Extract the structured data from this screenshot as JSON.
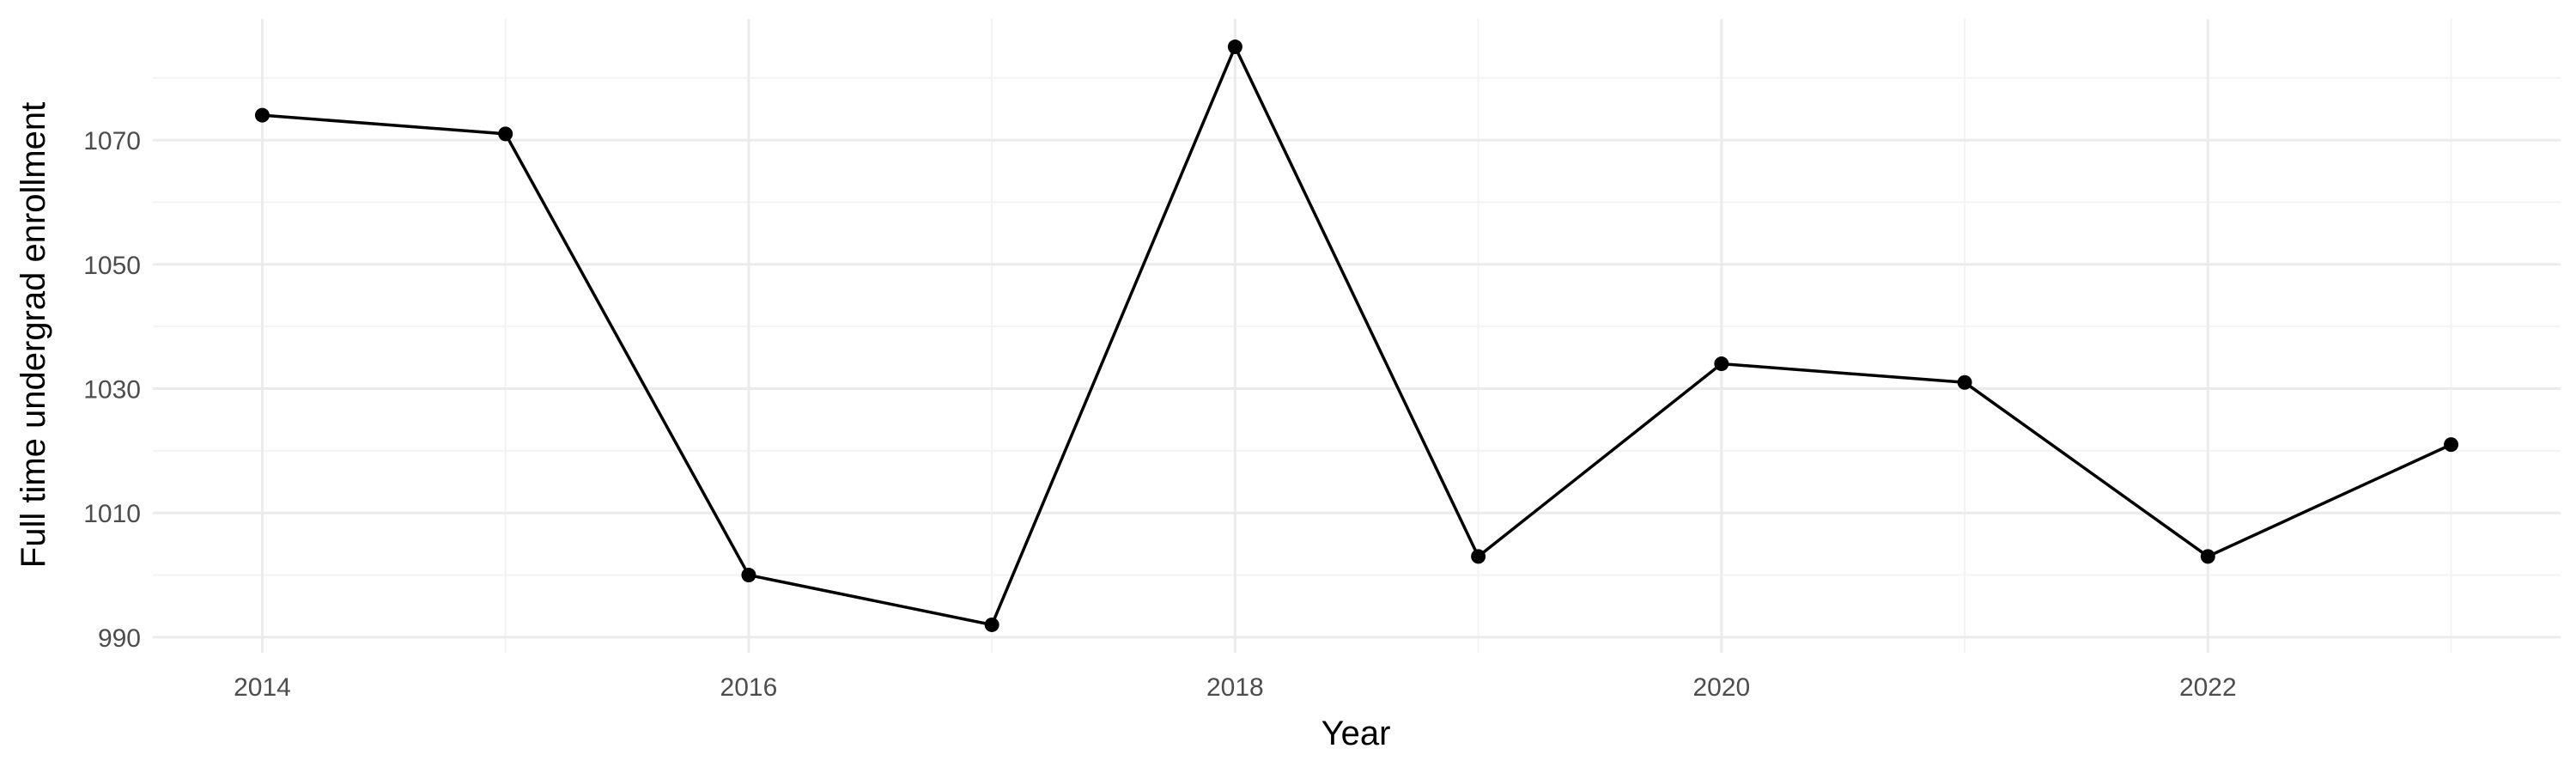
{
  "chart_data": {
    "type": "line",
    "xlabel": "Year",
    "ylabel": "Full time undergrad enrollment",
    "x": [
      2014,
      2015,
      2016,
      2017,
      2018,
      2019,
      2020,
      2021,
      2022,
      2023
    ],
    "series": [
      {
        "values": [
          1074,
          1071,
          1000,
          992,
          1085,
          1003,
          1034,
          1031,
          1003,
          1021
        ]
      }
    ],
    "xlim": [
      2013.55,
      2023.45
    ],
    "ylim": [
      987.5,
      1089.5
    ],
    "x_ticks": [
      "2014",
      "2016",
      "2018",
      "2020",
      "2022"
    ],
    "y_ticks": [
      "990",
      "1010",
      "1030",
      "1050",
      "1070"
    ],
    "grid": true,
    "line_color": "#000000",
    "grid_color": "#ebebeb"
  }
}
